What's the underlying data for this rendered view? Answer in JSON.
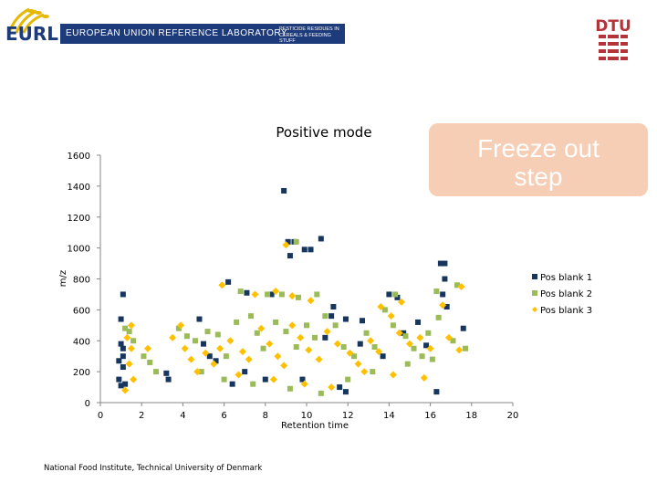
{
  "header": {
    "eurl_logo_text": "EURL",
    "band_title": "EUROPEAN UNION REFERENCE LABORATORY",
    "band_subtitle": "PESTICIDE RESIDUES IN CEREALS & FEEDING STUFF",
    "dtu_logo_text": "DTU",
    "brand_color": "#1d3a7a",
    "dtu_color": "#b5343a"
  },
  "callout": {
    "line1": "Freeze out",
    "line2": "step",
    "color": "#f6cdb5"
  },
  "footer": {
    "text": "National Food Institute, Technical University of Denmark"
  },
  "chart_data": {
    "type": "scatter",
    "title": "Positive mode",
    "xlabel": "Retention time",
    "ylabel": "m/z",
    "xlim": [
      0,
      20
    ],
    "ylim": [
      0,
      1600
    ],
    "xticks": [
      0,
      2,
      4,
      6,
      8,
      10,
      12,
      14,
      16,
      18,
      20
    ],
    "yticks": [
      0,
      200,
      400,
      600,
      800,
      1000,
      1200,
      1400,
      1600
    ],
    "x_tick_labels": [
      "0",
      "2",
      "4",
      "6",
      "8",
      "10",
      "12",
      "14",
      "16",
      "18",
      "20"
    ],
    "y_tick_labels": [
      "0",
      "200",
      "400",
      "600",
      "800",
      "1000",
      "1200",
      "1400",
      "1600"
    ],
    "grid": false,
    "legend_position": "right",
    "series": [
      {
        "name": "Pos blank 1",
        "color": "#17365d",
        "marker": "square",
        "points": [
          [
            8.9,
            1370
          ],
          [
            9.1,
            1040
          ],
          [
            9.2,
            950
          ],
          [
            9.4,
            1040
          ],
          [
            9.9,
            990
          ],
          [
            10.2,
            990
          ],
          [
            10.7,
            1060
          ],
          [
            16.5,
            900
          ],
          [
            16.7,
            900
          ],
          [
            16.7,
            800
          ],
          [
            1.1,
            700
          ],
          [
            1.0,
            540
          ],
          [
            6.2,
            780
          ],
          [
            7.1,
            710
          ],
          [
            8.3,
            700
          ],
          [
            11.3,
            620
          ],
          [
            11.2,
            560
          ],
          [
            11.9,
            540
          ],
          [
            12.7,
            530
          ],
          [
            14.0,
            700
          ],
          [
            14.4,
            680
          ],
          [
            15.4,
            520
          ],
          [
            16.6,
            700
          ],
          [
            16.8,
            620
          ],
          [
            17.6,
            480
          ],
          [
            1.0,
            380
          ],
          [
            1.1,
            350
          ],
          [
            1.1,
            300
          ],
          [
            0.9,
            270
          ],
          [
            1.1,
            230
          ],
          [
            0.9,
            150
          ],
          [
            1.0,
            110
          ],
          [
            1.2,
            120
          ],
          [
            3.2,
            190
          ],
          [
            3.3,
            150
          ],
          [
            4.8,
            540
          ],
          [
            5.0,
            380
          ],
          [
            5.3,
            300
          ],
          [
            5.6,
            270
          ],
          [
            6.4,
            120
          ],
          [
            7.0,
            200
          ],
          [
            8.0,
            150
          ],
          [
            9.8,
            150
          ],
          [
            10.9,
            420
          ],
          [
            11.6,
            100
          ],
          [
            11.9,
            70
          ],
          [
            12.6,
            380
          ],
          [
            13.7,
            300
          ],
          [
            14.7,
            450
          ],
          [
            15.8,
            370
          ],
          [
            16.3,
            70
          ]
        ]
      },
      {
        "name": "Pos blank 2",
        "color": "#9bbb59",
        "marker": "square",
        "points": [
          [
            9.5,
            1040
          ],
          [
            6.8,
            720
          ],
          [
            8.1,
            700
          ],
          [
            8.8,
            700
          ],
          [
            9.6,
            680
          ],
          [
            10.5,
            700
          ],
          [
            14.3,
            700
          ],
          [
            16.3,
            720
          ],
          [
            17.3,
            760
          ],
          [
            1.2,
            480
          ],
          [
            1.4,
            460
          ],
          [
            1.6,
            400
          ],
          [
            2.1,
            300
          ],
          [
            2.4,
            260
          ],
          [
            2.7,
            200
          ],
          [
            3.8,
            480
          ],
          [
            4.2,
            430
          ],
          [
            4.6,
            400
          ],
          [
            5.2,
            460
          ],
          [
            5.7,
            440
          ],
          [
            6.1,
            300
          ],
          [
            6.6,
            520
          ],
          [
            7.3,
            560
          ],
          [
            7.6,
            450
          ],
          [
            7.9,
            350
          ],
          [
            8.5,
            520
          ],
          [
            9.0,
            460
          ],
          [
            9.5,
            360
          ],
          [
            10.0,
            500
          ],
          [
            10.4,
            420
          ],
          [
            10.9,
            560
          ],
          [
            11.4,
            500
          ],
          [
            11.8,
            360
          ],
          [
            12.3,
            300
          ],
          [
            12.9,
            450
          ],
          [
            13.3,
            360
          ],
          [
            13.8,
            600
          ],
          [
            14.2,
            500
          ],
          [
            14.8,
            430
          ],
          [
            15.2,
            350
          ],
          [
            15.6,
            300
          ],
          [
            15.9,
            450
          ],
          [
            16.4,
            550
          ],
          [
            17.1,
            400
          ],
          [
            17.7,
            350
          ],
          [
            4.9,
            200
          ],
          [
            6.0,
            150
          ],
          [
            7.4,
            120
          ],
          [
            9.2,
            90
          ],
          [
            10.7,
            60
          ],
          [
            12.0,
            150
          ],
          [
            13.2,
            200
          ],
          [
            14.9,
            250
          ],
          [
            16.1,
            280
          ]
        ]
      },
      {
        "name": "Pos blank 3",
        "color": "#ffc000",
        "marker": "diamond",
        "points": [
          [
            9.0,
            1020
          ],
          [
            5.9,
            760
          ],
          [
            7.5,
            700
          ],
          [
            8.5,
            720
          ],
          [
            9.3,
            690
          ],
          [
            10.2,
            660
          ],
          [
            13.6,
            620
          ],
          [
            14.6,
            650
          ],
          [
            16.6,
            630
          ],
          [
            17.5,
            750
          ],
          [
            1.5,
            500
          ],
          [
            1.3,
            420
          ],
          [
            1.5,
            350
          ],
          [
            1.4,
            250
          ],
          [
            1.6,
            150
          ],
          [
            1.2,
            80
          ],
          [
            3.9,
            500
          ],
          [
            4.1,
            350
          ],
          [
            4.4,
            280
          ],
          [
            4.7,
            200
          ],
          [
            5.1,
            320
          ],
          [
            5.5,
            250
          ],
          [
            5.8,
            350
          ],
          [
            6.3,
            400
          ],
          [
            6.9,
            330
          ],
          [
            7.2,
            280
          ],
          [
            7.8,
            480
          ],
          [
            8.2,
            380
          ],
          [
            8.6,
            300
          ],
          [
            8.9,
            240
          ],
          [
            9.3,
            500
          ],
          [
            9.7,
            420
          ],
          [
            10.1,
            340
          ],
          [
            10.6,
            280
          ],
          [
            11.0,
            460
          ],
          [
            11.5,
            380
          ],
          [
            12.1,
            320
          ],
          [
            12.5,
            250
          ],
          [
            13.1,
            400
          ],
          [
            13.5,
            330
          ],
          [
            14.1,
            560
          ],
          [
            14.5,
            450
          ],
          [
            15.0,
            380
          ],
          [
            15.5,
            420
          ],
          [
            16.0,
            350
          ],
          [
            16.9,
            420
          ],
          [
            17.4,
            340
          ],
          [
            2.3,
            350
          ],
          [
            3.5,
            420
          ],
          [
            6.7,
            180
          ],
          [
            8.4,
            150
          ],
          [
            9.9,
            120
          ],
          [
            11.2,
            100
          ],
          [
            12.8,
            200
          ],
          [
            14.2,
            180
          ],
          [
            15.7,
            160
          ]
        ]
      }
    ]
  }
}
